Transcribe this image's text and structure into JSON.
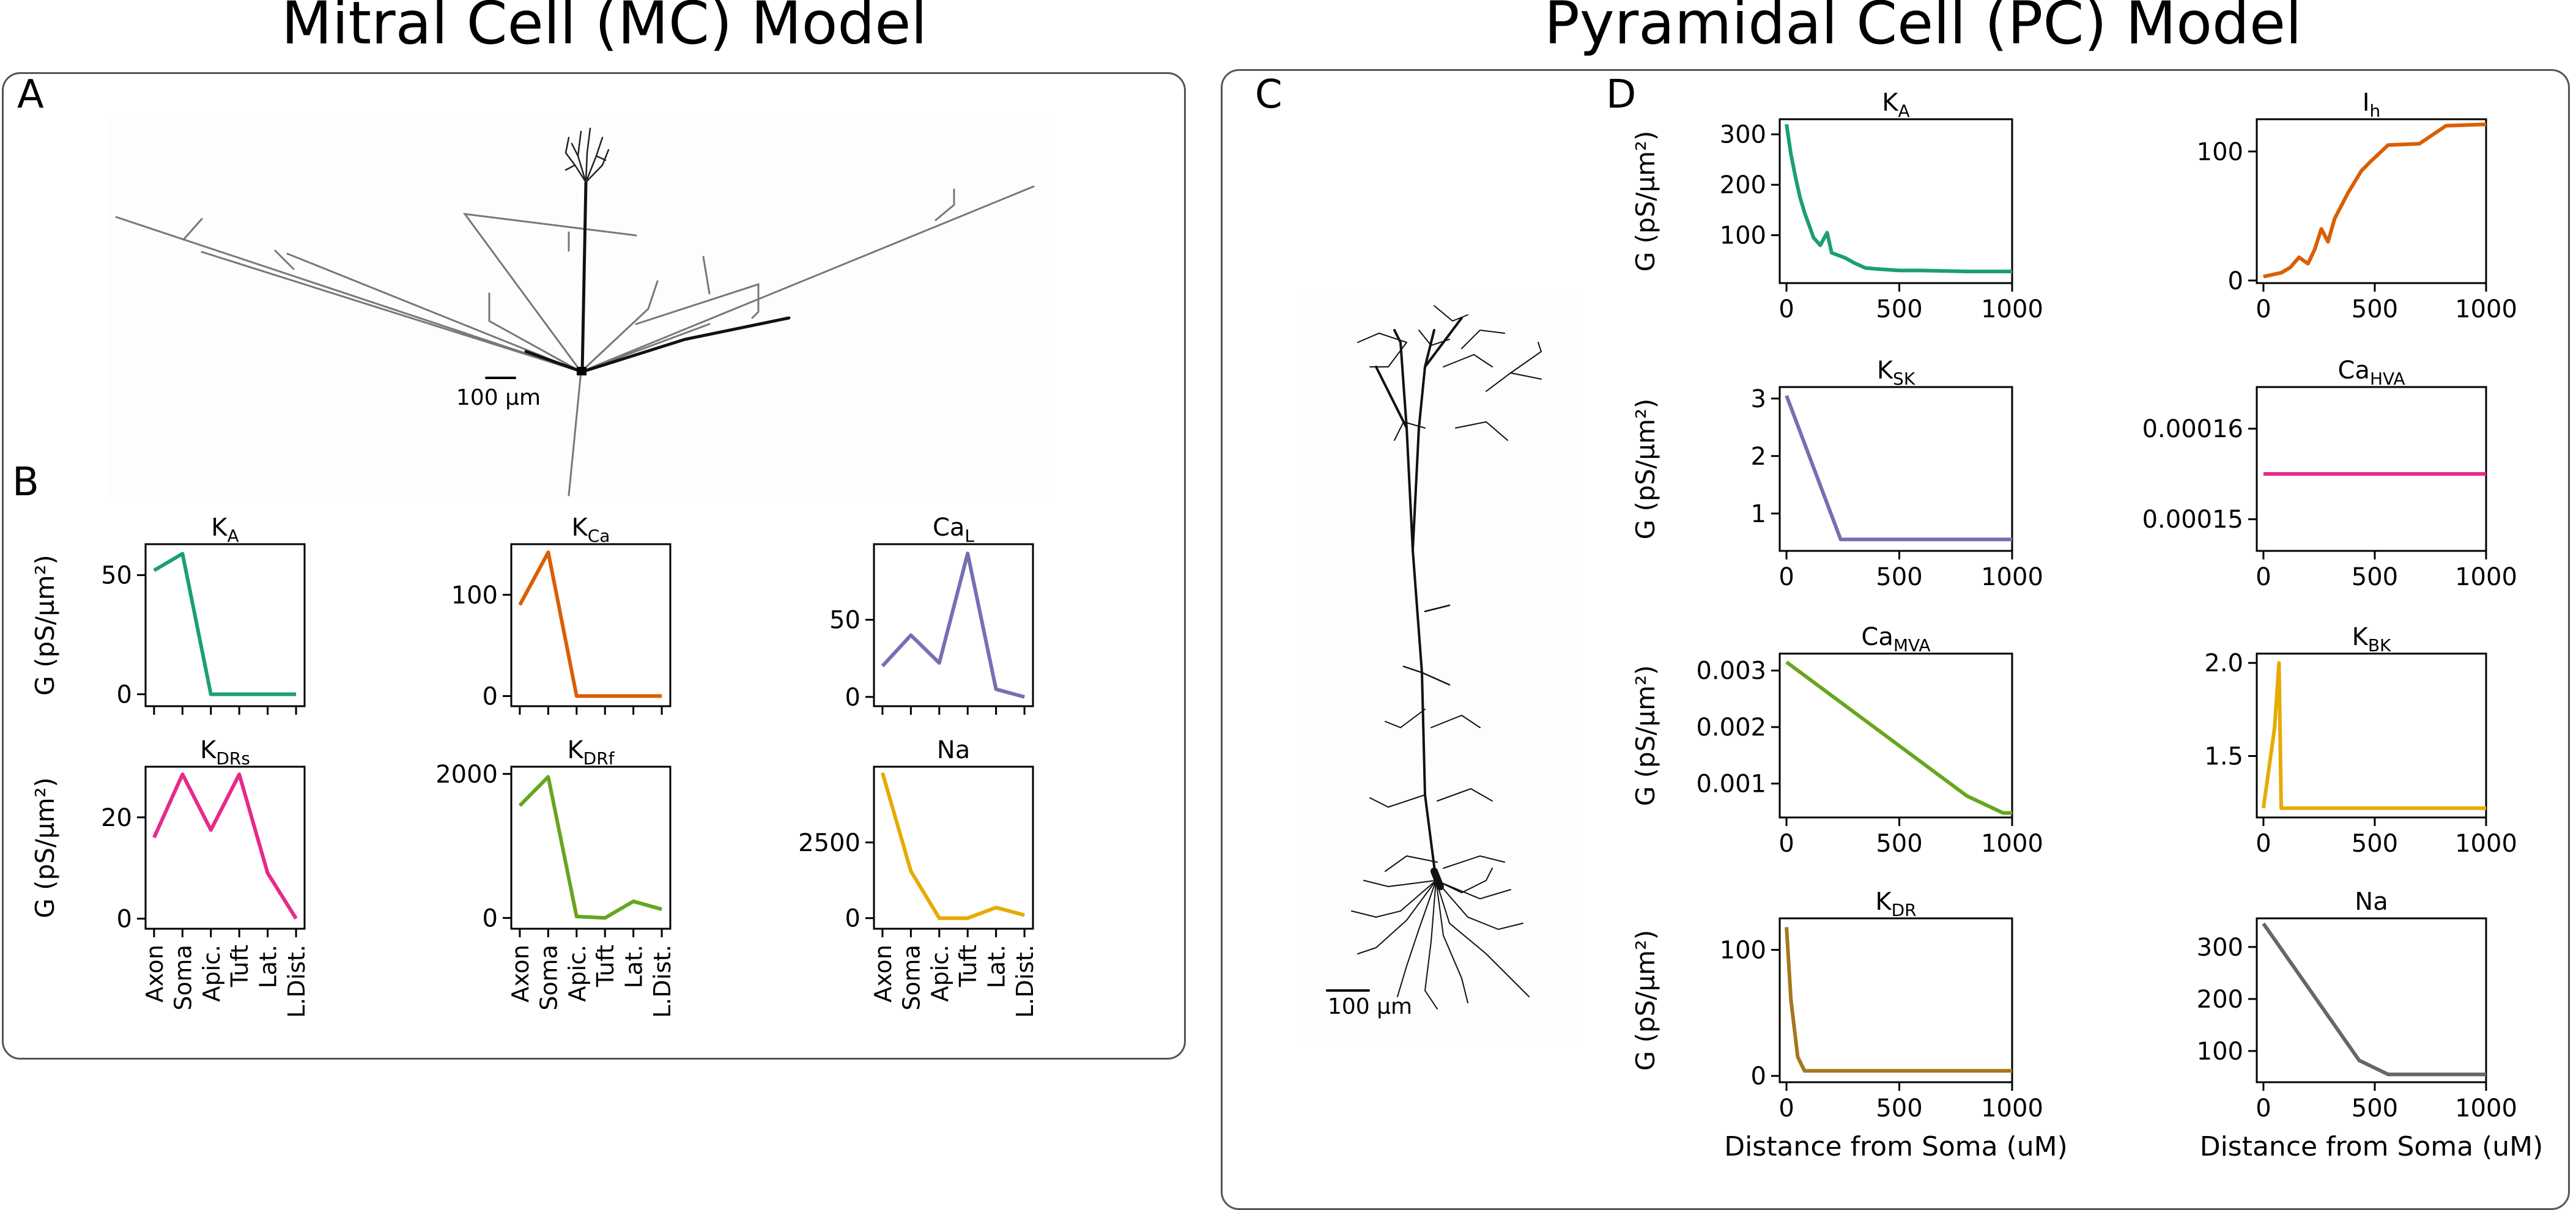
{
  "titles": {
    "mc": "Mitral Cell (MC) Model",
    "pc": "Pyramidal Cell (PC) Model"
  },
  "panel_letters": {
    "a": "A",
    "b": "B",
    "c": "C",
    "d": "D"
  },
  "scale_bars": {
    "mc": "100 µm",
    "pc": "100 µm"
  },
  "colors": {
    "teal": "#1b9e77",
    "orange": "#d95f02",
    "purple": "#7570b3",
    "magenta": "#e7298a",
    "green": "#66a61e",
    "gold": "#e6ab02",
    "brown": "#a6761d",
    "gray": "#666666"
  },
  "chart_data": [
    {
      "id": "mc_ka",
      "type": "line",
      "title": "K",
      "title_sub": "A",
      "ylabel": "G (pS/µm²)",
      "categories": [
        "Axon",
        "Soma",
        "Apic.",
        "Tuft",
        "Lat.",
        "L.Dist."
      ],
      "values": [
        52,
        59,
        0,
        0,
        0,
        0
      ],
      "ylim": [
        -5,
        63
      ],
      "yticks": [
        0,
        50
      ],
      "color": "#1b9e77",
      "show_xticklabels": false
    },
    {
      "id": "mc_kca",
      "type": "line",
      "title": "K",
      "title_sub": "Ca",
      "categories": [
        "Axon",
        "Soma",
        "Apic.",
        "Tuft",
        "Lat.",
        "L.Dist."
      ],
      "values": [
        90,
        142,
        0,
        0,
        0,
        0
      ],
      "ylim": [
        -10,
        150
      ],
      "yticks": [
        0,
        100
      ],
      "color": "#d95f02",
      "show_xticklabels": false
    },
    {
      "id": "mc_cal",
      "type": "line",
      "title": "Ca",
      "title_sub": "L",
      "categories": [
        "Axon",
        "Soma",
        "Apic.",
        "Tuft",
        "Lat.",
        "L.Dist."
      ],
      "values": [
        20,
        40,
        22,
        93,
        5,
        0
      ],
      "ylim": [
        -6,
        99
      ],
      "yticks": [
        0,
        50
      ],
      "color": "#7570b3",
      "show_xticklabels": false
    },
    {
      "id": "mc_kdrs",
      "type": "line",
      "title": "K",
      "title_sub": "DRs",
      "ylabel": "G (pS/µm²)",
      "categories": [
        "Axon",
        "Soma",
        "Apic.",
        "Tuft",
        "Lat.",
        "L.Dist."
      ],
      "values": [
        16,
        28.5,
        17.5,
        28.5,
        9,
        0
      ],
      "ylim": [
        -2,
        30
      ],
      "yticks": [
        0,
        20
      ],
      "color": "#e7298a",
      "show_xticklabels": true
    },
    {
      "id": "mc_kdrf",
      "type": "line",
      "title": "K",
      "title_sub": "DRf",
      "categories": [
        "Axon",
        "Soma",
        "Apic.",
        "Tuft",
        "Lat.",
        "L.Dist."
      ],
      "values": [
        1560,
        1960,
        20,
        0,
        230,
        120
      ],
      "ylim": [
        -150,
        2100
      ],
      "yticks": [
        0,
        2000
      ],
      "color": "#66a61e",
      "show_xticklabels": true
    },
    {
      "id": "mc_na",
      "type": "line",
      "title": "Na",
      "title_sub": "",
      "categories": [
        "Axon",
        "Soma",
        "Apic.",
        "Tuft",
        "Lat.",
        "L.Dist."
      ],
      "values": [
        4800,
        1550,
        0,
        0,
        350,
        100
      ],
      "ylim": [
        -350,
        5000
      ],
      "yticks": [
        0,
        2500
      ],
      "color": "#e6ab02",
      "show_xticklabels": true
    },
    {
      "id": "pc_ka",
      "type": "line",
      "title": "K",
      "title_sub": "A",
      "ylabel": "G (pS/µm²)",
      "x": [
        0,
        20,
        40,
        60,
        80,
        100,
        120,
        150,
        180,
        200,
        230,
        260,
        300,
        350,
        400,
        500,
        600,
        800,
        1000
      ],
      "values": [
        320,
        260,
        215,
        175,
        145,
        120,
        95,
        80,
        105,
        65,
        60,
        55,
        45,
        35,
        33,
        30,
        30,
        28,
        28
      ],
      "xlim": [
        -30,
        1000
      ],
      "ylim": [
        5,
        330
      ],
      "yticks": [
        100,
        200,
        300
      ],
      "xticks": [
        0,
        500,
        1000
      ],
      "color": "#1b9e77",
      "show_xlabel": false
    },
    {
      "id": "pc_ih",
      "type": "line",
      "title": "I",
      "title_sub": "h",
      "x": [
        0,
        80,
        120,
        160,
        200,
        230,
        260,
        290,
        320,
        380,
        440,
        480,
        560,
        700,
        820,
        1000
      ],
      "values": [
        3,
        6,
        10,
        18,
        13,
        24,
        40,
        30,
        48,
        68,
        85,
        92,
        105,
        106,
        120,
        121
      ],
      "xlim": [
        -30,
        1000
      ],
      "ylim": [
        -2,
        125
      ],
      "yticks": [
        0,
        100
      ],
      "xticks": [
        0,
        500,
        1000
      ],
      "color": "#d95f02",
      "show_xlabel": false
    },
    {
      "id": "pc_ksk",
      "type": "line",
      "title": "K",
      "title_sub": "SK",
      "ylabel": "G (pS/µm²)",
      "x": [
        0,
        240,
        500,
        1000
      ],
      "values": [
        3.05,
        0.55,
        0.55,
        0.55
      ],
      "xlim": [
        -30,
        1000
      ],
      "ylim": [
        0.35,
        3.2
      ],
      "yticks": [
        1,
        2,
        3
      ],
      "xticks": [
        0,
        500,
        1000
      ],
      "color": "#7570b3",
      "show_xlabel": false
    },
    {
      "id": "pc_cahva",
      "type": "line",
      "title": "Ca",
      "title_sub": "HVA",
      "x": [
        0,
        1000
      ],
      "values": [
        0.000155,
        0.000155
      ],
      "xlim": [
        -30,
        1000
      ],
      "ylim": [
        0.0001465,
        0.0001646
      ],
      "yticks": [
        0.00015,
        0.00016
      ],
      "ytick_labels": [
        "0.00015",
        "0.00016"
      ],
      "xticks": [
        0,
        500,
        1000
      ],
      "color": "#e7298a",
      "show_xlabel": false
    },
    {
      "id": "pc_camva",
      "type": "line",
      "title": "Ca",
      "title_sub": "MVA",
      "ylabel": "G (pS/µm²)",
      "x": [
        0,
        800,
        960,
        1000
      ],
      "values": [
        0.00315,
        0.00078,
        0.00048,
        0.00048
      ],
      "xlim": [
        -30,
        1000
      ],
      "ylim": [
        0.0004,
        0.0033
      ],
      "yticks": [
        0.001,
        0.002,
        0.003
      ],
      "ytick_labels": [
        "0.001",
        "0.002",
        "0.003"
      ],
      "xticks": [
        0,
        500,
        1000
      ],
      "color": "#66a61e",
      "show_xlabel": false
    },
    {
      "id": "pc_kbk",
      "type": "line",
      "title": "K",
      "title_sub": "BK",
      "x": [
        0,
        50,
        70,
        80,
        1000
      ],
      "values": [
        1.22,
        1.65,
        2.0,
        1.22,
        1.22
      ],
      "xlim": [
        -30,
        1000
      ],
      "ylim": [
        1.17,
        2.05
      ],
      "yticks": [
        1.5,
        2.0
      ],
      "ytick_labels": [
        "1.5",
        "2.0"
      ],
      "xticks": [
        0,
        500,
        1000
      ],
      "color": "#e6ab02",
      "show_xlabel": false
    },
    {
      "id": "pc_kdr",
      "type": "line",
      "title": "K",
      "title_sub": "DR",
      "ylabel": "G (pS/µm²)",
      "x": [
        0,
        20,
        50,
        80,
        1000
      ],
      "values": [
        118,
        60,
        15,
        4,
        4
      ],
      "xlim": [
        -30,
        1000
      ],
      "ylim": [
        -5,
        125
      ],
      "yticks": [
        0,
        100
      ],
      "xticks": [
        0,
        500,
        1000
      ],
      "color": "#a6761d",
      "show_xlabel": true,
      "xlabel": "Distance from Soma (uM)"
    },
    {
      "id": "pc_na",
      "type": "line",
      "title": "Na",
      "title_sub": "",
      "x": [
        0,
        430,
        560,
        1000
      ],
      "values": [
        345,
        82,
        55,
        55
      ],
      "xlim": [
        -30,
        1000
      ],
      "ylim": [
        40,
        355
      ],
      "yticks": [
        100,
        200,
        300
      ],
      "xticks": [
        0,
        500,
        1000
      ],
      "color": "#666666",
      "show_xlabel": true,
      "xlabel": "Distance from Soma (uM)"
    }
  ]
}
